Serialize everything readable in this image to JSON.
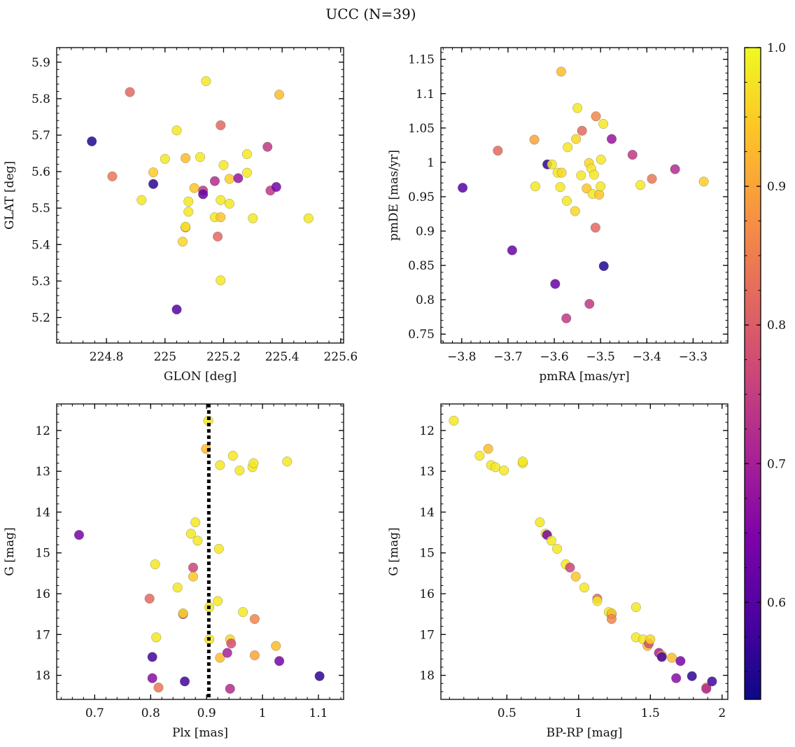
{
  "figure_title": "UCC (N=39)",
  "colorbar": {
    "ticks": [
      "0.6",
      "0.7",
      "0.8",
      "0.9",
      "1.0"
    ],
    "range": [
      0.53,
      1.0
    ],
    "colormap": "plasma"
  },
  "chart_data": [
    {
      "type": "scatter",
      "xlabel": "GLON [deg]",
      "ylabel": "GLAT [deg]",
      "xlim": [
        224.63,
        225.61
      ],
      "ylim": [
        5.13,
        5.94
      ],
      "xticks": [
        224.8,
        225.0,
        225.2,
        225.4,
        225.6
      ],
      "yticks": [
        5.2,
        5.3,
        5.4,
        5.5,
        5.6,
        5.7,
        5.8,
        5.9
      ],
      "points": [
        {
          "x": 224.75,
          "y": 5.683,
          "c": 0.55
        },
        {
          "x": 224.88,
          "y": 5.818,
          "c": 0.82
        },
        {
          "x": 224.82,
          "y": 5.587,
          "c": 0.84
        },
        {
          "x": 224.92,
          "y": 5.522,
          "c": 0.98
        },
        {
          "x": 224.96,
          "y": 5.598,
          "c": 0.95
        },
        {
          "x": 224.96,
          "y": 5.566,
          "c": 0.56
        },
        {
          "x": 225.0,
          "y": 5.635,
          "c": 0.98
        },
        {
          "x": 225.04,
          "y": 5.713,
          "c": 0.98
        },
        {
          "x": 225.04,
          "y": 5.222,
          "c": 0.6
        },
        {
          "x": 225.06,
          "y": 5.408,
          "c": 0.96
        },
        {
          "x": 225.07,
          "y": 5.447,
          "c": 0.86
        },
        {
          "x": 225.07,
          "y": 5.449,
          "c": 0.98
        },
        {
          "x": 225.07,
          "y": 5.637,
          "c": 0.93
        },
        {
          "x": 225.08,
          "y": 5.518,
          "c": 0.98
        },
        {
          "x": 225.08,
          "y": 5.49,
          "c": 0.98
        },
        {
          "x": 225.1,
          "y": 5.555,
          "c": 0.94
        },
        {
          "x": 225.12,
          "y": 5.64,
          "c": 0.98
        },
        {
          "x": 225.13,
          "y": 5.548,
          "c": 0.74
        },
        {
          "x": 225.13,
          "y": 5.538,
          "c": 0.62
        },
        {
          "x": 225.14,
          "y": 5.848,
          "c": 0.98
        },
        {
          "x": 225.17,
          "y": 5.574,
          "c": 0.72
        },
        {
          "x": 225.17,
          "y": 5.475,
          "c": 0.98
        },
        {
          "x": 225.18,
          "y": 5.422,
          "c": 0.82
        },
        {
          "x": 225.19,
          "y": 5.475,
          "c": 0.94
        },
        {
          "x": 225.19,
          "y": 5.522,
          "c": 0.98
        },
        {
          "x": 225.19,
          "y": 5.727,
          "c": 0.82
        },
        {
          "x": 225.19,
          "y": 5.302,
          "c": 0.98
        },
        {
          "x": 225.2,
          "y": 5.618,
          "c": 0.98
        },
        {
          "x": 225.22,
          "y": 5.58,
          "c": 0.95
        },
        {
          "x": 225.22,
          "y": 5.512,
          "c": 0.98
        },
        {
          "x": 225.25,
          "y": 5.582,
          "c": 0.68
        },
        {
          "x": 225.28,
          "y": 5.597,
          "c": 0.98
        },
        {
          "x": 225.28,
          "y": 5.648,
          "c": 0.98
        },
        {
          "x": 225.3,
          "y": 5.472,
          "c": 0.98
        },
        {
          "x": 225.35,
          "y": 5.668,
          "c": 0.74
        },
        {
          "x": 225.36,
          "y": 5.548,
          "c": 0.74
        },
        {
          "x": 225.38,
          "y": 5.558,
          "c": 0.64
        },
        {
          "x": 225.39,
          "y": 5.811,
          "c": 0.93
        },
        {
          "x": 225.49,
          "y": 5.472,
          "c": 0.98
        }
      ]
    },
    {
      "type": "scatter",
      "xlabel": "pmRA [mas/yr]",
      "ylabel": "pmDE [mas/yr]",
      "xlim": [
        -3.845,
        -3.225
      ],
      "ylim": [
        0.737,
        1.167
      ],
      "xticks": [
        -3.8,
        -3.7,
        -3.6,
        -3.5,
        -3.4,
        -3.3
      ],
      "xticklabels": [
        "−3.8",
        "−3.7",
        "−3.6",
        "−3.5",
        "−3.4",
        "−3.3"
      ],
      "yticks": [
        0.75,
        0.8,
        0.85,
        0.9,
        0.95,
        1.0,
        1.05,
        1.1,
        1.15
      ],
      "points": [
        {
          "x": -3.798,
          "y": 0.963,
          "c": 0.6
        },
        {
          "x": -3.722,
          "y": 1.017,
          "c": 0.82
        },
        {
          "x": -3.691,
          "y": 0.872,
          "c": 0.62
        },
        {
          "x": -3.643,
          "y": 1.033,
          "c": 0.9
        },
        {
          "x": -3.641,
          "y": 0.965,
          "c": 0.98
        },
        {
          "x": -3.615,
          "y": 0.997,
          "c": 0.56
        },
        {
          "x": -3.605,
          "y": 0.997,
          "c": 0.98
        },
        {
          "x": -3.598,
          "y": 0.823,
          "c": 0.62
        },
        {
          "x": -3.593,
          "y": 0.985,
          "c": 0.98
        },
        {
          "x": -3.587,
          "y": 0.964,
          "c": 0.98
        },
        {
          "x": -3.585,
          "y": 1.132,
          "c": 0.93
        },
        {
          "x": -3.584,
          "y": 0.985,
          "c": 0.96
        },
        {
          "x": -3.574,
          "y": 0.773,
          "c": 0.74
        },
        {
          "x": -3.573,
          "y": 0.944,
          "c": 0.98
        },
        {
          "x": -3.571,
          "y": 1.022,
          "c": 0.98
        },
        {
          "x": -3.555,
          "y": 0.929,
          "c": 0.96
        },
        {
          "x": -3.553,
          "y": 1.034,
          "c": 0.96
        },
        {
          "x": -3.55,
          "y": 1.079,
          "c": 0.98
        },
        {
          "x": -3.542,
          "y": 0.981,
          "c": 0.98
        },
        {
          "x": -3.54,
          "y": 1.046,
          "c": 0.82
        },
        {
          "x": -3.53,
          "y": 0.962,
          "c": 0.94
        },
        {
          "x": -3.525,
          "y": 0.999,
          "c": 0.96
        },
        {
          "x": -3.524,
          "y": 0.794,
          "c": 0.74
        },
        {
          "x": -3.52,
          "y": 0.991,
          "c": 0.98
        },
        {
          "x": -3.517,
          "y": 0.954,
          "c": 0.98
        },
        {
          "x": -3.514,
          "y": 0.982,
          "c": 0.98
        },
        {
          "x": -3.511,
          "y": 0.905,
          "c": 0.82
        },
        {
          "x": -3.51,
          "y": 1.067,
          "c": 0.86
        },
        {
          "x": -3.503,
          "y": 0.953,
          "c": 0.94
        },
        {
          "x": -3.5,
          "y": 0.965,
          "c": 0.98
        },
        {
          "x": -3.499,
          "y": 1.004,
          "c": 0.98
        },
        {
          "x": -3.494,
          "y": 1.056,
          "c": 0.98
        },
        {
          "x": -3.493,
          "y": 0.849,
          "c": 0.55
        },
        {
          "x": -3.476,
          "y": 1.034,
          "c": 0.68
        },
        {
          "x": -3.431,
          "y": 1.011,
          "c": 0.74
        },
        {
          "x": -3.414,
          "y": 0.967,
          "c": 0.98
        },
        {
          "x": -3.389,
          "y": 0.976,
          "c": 0.84
        },
        {
          "x": -3.339,
          "y": 0.99,
          "c": 0.72
        },
        {
          "x": -3.277,
          "y": 0.972,
          "c": 0.95
        }
      ]
    },
    {
      "type": "scatter",
      "xlabel": "Plx [mas]",
      "ylabel": "G [mag]",
      "xlim": [
        0.632,
        1.145
      ],
      "ylim": [
        18.59,
        11.35
      ],
      "xticks": [
        0.7,
        0.8,
        0.9,
        1.0,
        1.1
      ],
      "yticks": [
        12,
        13,
        14,
        15,
        16,
        17,
        18
      ],
      "vline": 0.904,
      "points": [
        {
          "x": 0.672,
          "y": 14.56,
          "c": 0.64
        },
        {
          "x": 0.798,
          "y": 16.12,
          "c": 0.82
        },
        {
          "x": 0.803,
          "y": 17.55,
          "c": 0.58
        },
        {
          "x": 0.803,
          "y": 18.07,
          "c": 0.66
        },
        {
          "x": 0.808,
          "y": 15.28,
          "c": 0.98
        },
        {
          "x": 0.81,
          "y": 17.07,
          "c": 0.98
        },
        {
          "x": 0.814,
          "y": 18.3,
          "c": 0.84
        },
        {
          "x": 0.848,
          "y": 15.85,
          "c": 0.98
        },
        {
          "x": 0.858,
          "y": 16.5,
          "c": 0.74
        },
        {
          "x": 0.858,
          "y": 16.48,
          "c": 0.96
        },
        {
          "x": 0.861,
          "y": 18.15,
          "c": 0.58
        },
        {
          "x": 0.872,
          "y": 14.53,
          "c": 0.98
        },
        {
          "x": 0.876,
          "y": 15.36,
          "c": 0.76
        },
        {
          "x": 0.876,
          "y": 15.58,
          "c": 0.94
        },
        {
          "x": 0.88,
          "y": 14.25,
          "c": 0.98
        },
        {
          "x": 0.884,
          "y": 14.7,
          "c": 0.98
        },
        {
          "x": 0.899,
          "y": 12.45,
          "c": 0.93
        },
        {
          "x": 0.903,
          "y": 11.76,
          "c": 0.98
        },
        {
          "x": 0.905,
          "y": 16.33,
          "c": 0.98
        },
        {
          "x": 0.905,
          "y": 17.12,
          "c": 0.98
        },
        {
          "x": 0.92,
          "y": 16.18,
          "c": 0.98
        },
        {
          "x": 0.922,
          "y": 14.9,
          "c": 0.98
        },
        {
          "x": 0.924,
          "y": 12.85,
          "c": 0.98
        },
        {
          "x": 0.924,
          "y": 17.57,
          "c": 0.93
        },
        {
          "x": 0.937,
          "y": 17.45,
          "c": 0.7
        },
        {
          "x": 0.942,
          "y": 18.33,
          "c": 0.72
        },
        {
          "x": 0.942,
          "y": 17.12,
          "c": 0.96
        },
        {
          "x": 0.944,
          "y": 17.22,
          "c": 0.78
        },
        {
          "x": 0.947,
          "y": 12.62,
          "c": 0.98
        },
        {
          "x": 0.959,
          "y": 12.98,
          "c": 0.98
        },
        {
          "x": 0.965,
          "y": 16.45,
          "c": 0.98
        },
        {
          "x": 0.982,
          "y": 12.9,
          "c": 0.98
        },
        {
          "x": 0.984,
          "y": 12.8,
          "c": 0.98
        },
        {
          "x": 0.986,
          "y": 16.62,
          "c": 0.86
        },
        {
          "x": 0.986,
          "y": 17.51,
          "c": 0.9
        },
        {
          "x": 1.024,
          "y": 17.28,
          "c": 0.93
        },
        {
          "x": 1.03,
          "y": 17.65,
          "c": 0.64
        },
        {
          "x": 1.044,
          "y": 12.76,
          "c": 0.98
        },
        {
          "x": 1.102,
          "y": 18.02,
          "c": 0.56
        }
      ]
    },
    {
      "type": "scatter",
      "xlabel": "BP-RP [mag]",
      "ylabel": "G [mag]",
      "xlim": [
        0.04,
        2.04
      ],
      "ylim": [
        18.59,
        11.35
      ],
      "xticks": [
        0.5,
        1.0,
        1.5,
        2.0
      ],
      "yticks": [
        12,
        13,
        14,
        15,
        16,
        17,
        18
      ],
      "points": [
        {
          "x": 0.13,
          "y": 11.76,
          "c": 0.98
        },
        {
          "x": 0.31,
          "y": 12.62,
          "c": 0.98
        },
        {
          "x": 0.37,
          "y": 12.45,
          "c": 0.93
        },
        {
          "x": 0.39,
          "y": 12.85,
          "c": 0.98
        },
        {
          "x": 0.42,
          "y": 12.9,
          "c": 0.98
        },
        {
          "x": 0.48,
          "y": 12.98,
          "c": 0.98
        },
        {
          "x": 0.61,
          "y": 12.8,
          "c": 0.98
        },
        {
          "x": 0.61,
          "y": 12.76,
          "c": 0.98
        },
        {
          "x": 0.73,
          "y": 14.25,
          "c": 0.98
        },
        {
          "x": 0.77,
          "y": 14.53,
          "c": 0.98
        },
        {
          "x": 0.78,
          "y": 14.56,
          "c": 0.64
        },
        {
          "x": 0.81,
          "y": 14.7,
          "c": 0.98
        },
        {
          "x": 0.85,
          "y": 14.9,
          "c": 0.98
        },
        {
          "x": 0.91,
          "y": 15.28,
          "c": 0.98
        },
        {
          "x": 0.94,
          "y": 15.36,
          "c": 0.76
        },
        {
          "x": 0.98,
          "y": 15.58,
          "c": 0.94
        },
        {
          "x": 1.04,
          "y": 15.85,
          "c": 0.98
        },
        {
          "x": 1.13,
          "y": 16.12,
          "c": 0.82
        },
        {
          "x": 1.13,
          "y": 16.18,
          "c": 0.98
        },
        {
          "x": 1.21,
          "y": 16.45,
          "c": 0.98
        },
        {
          "x": 1.23,
          "y": 16.5,
          "c": 0.74
        },
        {
          "x": 1.23,
          "y": 16.48,
          "c": 0.96
        },
        {
          "x": 1.23,
          "y": 16.62,
          "c": 0.86
        },
        {
          "x": 1.4,
          "y": 16.33,
          "c": 0.98
        },
        {
          "x": 1.4,
          "y": 17.07,
          "c": 0.98
        },
        {
          "x": 1.45,
          "y": 17.12,
          "c": 0.98
        },
        {
          "x": 1.48,
          "y": 17.28,
          "c": 0.93
        },
        {
          "x": 1.49,
          "y": 17.22,
          "c": 0.78
        },
        {
          "x": 1.5,
          "y": 17.12,
          "c": 0.96
        },
        {
          "x": 1.56,
          "y": 17.45,
          "c": 0.7
        },
        {
          "x": 1.58,
          "y": 17.51,
          "c": 0.9
        },
        {
          "x": 1.58,
          "y": 17.55,
          "c": 0.58
        },
        {
          "x": 1.65,
          "y": 17.57,
          "c": 0.93
        },
        {
          "x": 1.68,
          "y": 18.07,
          "c": 0.66
        },
        {
          "x": 1.71,
          "y": 17.65,
          "c": 0.64
        },
        {
          "x": 1.79,
          "y": 18.02,
          "c": 0.56
        },
        {
          "x": 1.89,
          "y": 18.3,
          "c": 0.84
        },
        {
          "x": 1.89,
          "y": 18.33,
          "c": 0.72
        },
        {
          "x": 1.93,
          "y": 18.15,
          "c": 0.58
        }
      ]
    }
  ]
}
